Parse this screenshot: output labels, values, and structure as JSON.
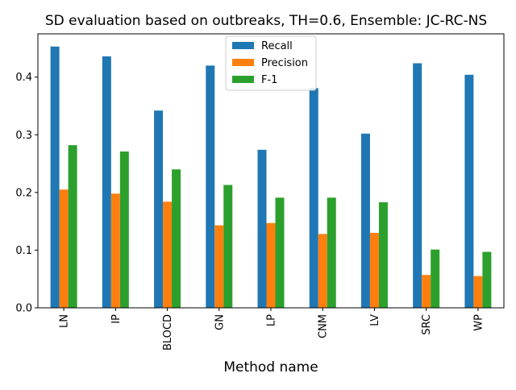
{
  "chart_data": {
    "type": "bar",
    "title": "SD evaluation based on outbreaks, TH=0.6, Ensemble: JC-RC-NS",
    "xlabel": "Method name",
    "ylabel": "",
    "categories": [
      "LN",
      "IP",
      "BLOCD",
      "GN",
      "LP",
      "CNM",
      "LV",
      "SRC",
      "WP"
    ],
    "series": [
      {
        "name": "Recall",
        "color": "#1f77b4",
        "values": [
          0.453,
          0.436,
          0.342,
          0.42,
          0.274,
          0.381,
          0.302,
          0.424,
          0.404
        ]
      },
      {
        "name": "Precision",
        "color": "#ff7f0e",
        "values": [
          0.205,
          0.198,
          0.184,
          0.143,
          0.147,
          0.128,
          0.13,
          0.057,
          0.055
        ]
      },
      {
        "name": "F-1",
        "color": "#2ca02c",
        "values": [
          0.282,
          0.271,
          0.24,
          0.213,
          0.191,
          0.191,
          0.183,
          0.101,
          0.097
        ]
      }
    ],
    "ylim": [
      0,
      0.475
    ],
    "yticks": [
      "0.0",
      "0.1",
      "0.2",
      "0.3",
      "0.4"
    ],
    "legend_position": "upper center",
    "grid": false
  }
}
